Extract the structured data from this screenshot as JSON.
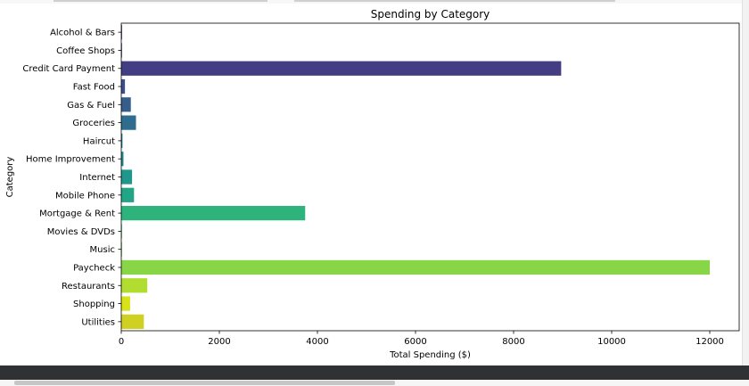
{
  "chart_data": {
    "type": "bar",
    "orientation": "horizontal",
    "title": "Spending by Category",
    "xlabel": "Total Spending ($)",
    "ylabel": "Category",
    "xlim": [
      0,
      12600
    ],
    "xticks": [
      0,
      2000,
      4000,
      6000,
      8000,
      10000,
      12000
    ],
    "grid": false,
    "categories": [
      "Alcohol & Bars",
      "Coffee Shops",
      "Credit Card Payment",
      "Fast Food",
      "Gas & Fuel",
      "Groceries",
      "Haircut",
      "Home Improvement",
      "Internet",
      "Mobile Phone",
      "Mortgage & Rent",
      "Movies & DVDs",
      "Music",
      "Paycheck",
      "Restaurants",
      "Shopping",
      "Utilities"
    ],
    "values": [
      15,
      5,
      8970,
      75,
      195,
      300,
      25,
      45,
      220,
      260,
      3750,
      10,
      15,
      12000,
      530,
      180,
      460
    ],
    "colors": [
      "#481467",
      "#472a7a",
      "#433d84",
      "#3d4e8a",
      "#355e8d",
      "#2e6d8e",
      "#297b8e",
      "#23898e",
      "#1f978b",
      "#21a585",
      "#2eb37c",
      "#46c06f",
      "#65cb5e",
      "#89d548",
      "#b0dd2f",
      "#d8e219",
      "#d0d022"
    ],
    "palette": "viridis"
  }
}
